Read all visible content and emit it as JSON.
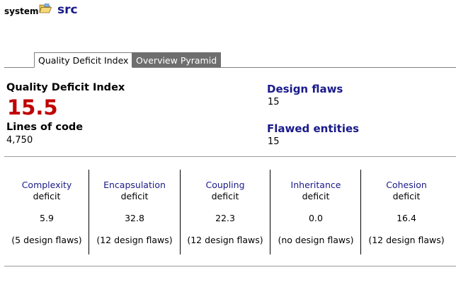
{
  "breadcrumb": {
    "root": "system",
    "folder_icon": "folder-open-icon",
    "current": "src"
  },
  "tabs": [
    {
      "label": "Quality Deficit Index",
      "active": true
    },
    {
      "label": "Overview Pyramid",
      "active": false
    }
  ],
  "summary": {
    "qdi_label": "Quality Deficit Index",
    "qdi_value": "15.5",
    "loc_label": "Lines of code",
    "loc_value": "4,750",
    "design_flaws_label": "Design flaws",
    "design_flaws_value": "15",
    "flawed_entities_label": "Flawed entities",
    "flawed_entities_value": "15"
  },
  "deficits": [
    {
      "name": "Complexity",
      "sub": "deficit",
      "value": "5.9",
      "flaws": "(5 design flaws)"
    },
    {
      "name": "Encapsulation",
      "sub": "deficit",
      "value": "32.8",
      "flaws": "(12 design flaws)"
    },
    {
      "name": "Coupling",
      "sub": "deficit",
      "value": "22.3",
      "flaws": "(12 design flaws)"
    },
    {
      "name": "Inheritance",
      "sub": "deficit",
      "value": "0.0",
      "flaws": "(no design flaws)"
    },
    {
      "name": "Cohesion",
      "sub": "deficit",
      "value": "16.4",
      "flaws": "(12 design flaws)"
    }
  ],
  "colors": {
    "accent_red": "#c00000",
    "link_navy": "#1a1a8a",
    "tab_inactive_bg": "#6e6e6e"
  }
}
